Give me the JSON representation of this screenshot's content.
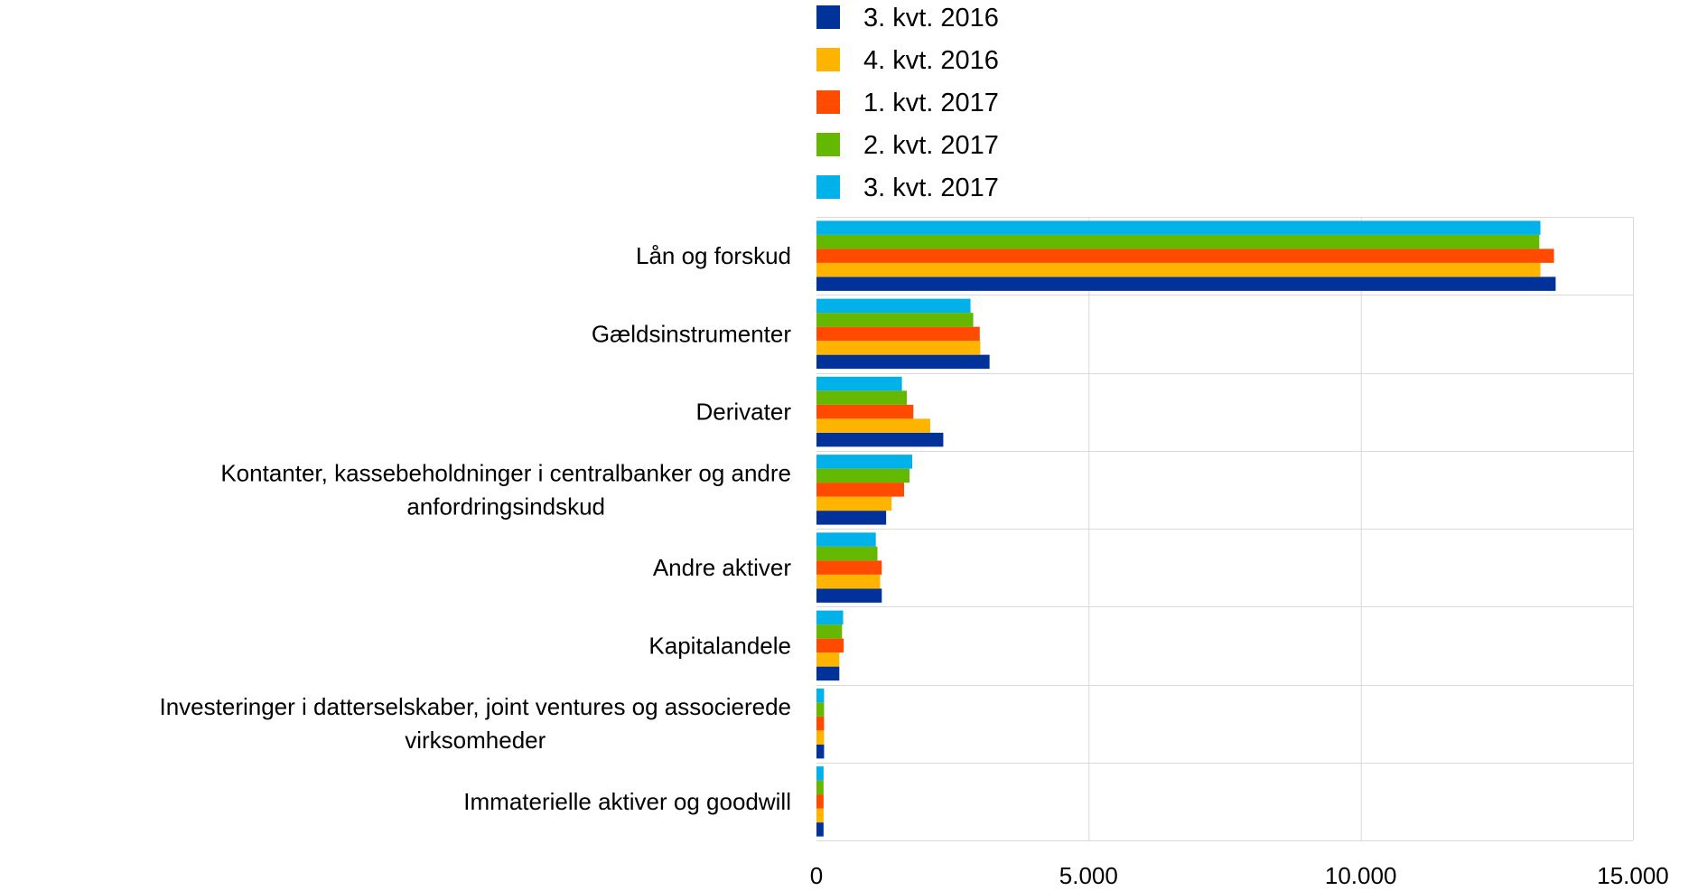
{
  "chart_data": {
    "type": "bar",
    "orientation": "horizontal",
    "title": "",
    "xlabel": "",
    "ylabel": "",
    "xlim": [
      0,
      15000
    ],
    "xticks": [
      0,
      5000,
      10000,
      15000
    ],
    "xtick_labels": [
      "0",
      "5.000",
      "10.000",
      "15.000"
    ],
    "grid": true,
    "legend_position": "top",
    "categories": [
      [
        "Lån og forskud"
      ],
      [
        "Gældsinstrumenter"
      ],
      [
        "Derivater"
      ],
      [
        "Kontanter, kassebeholdninger i centralbanker og andre",
        "anfordringsindskud"
      ],
      [
        "Andre aktiver"
      ],
      [
        "Kapitalandele"
      ],
      [
        "Investeringer i datterselskaber, joint ventures og associerede",
        "virksomheder"
      ],
      [
        "Immaterielle aktiver og goodwill"
      ]
    ],
    "series": [
      {
        "name": "3. kvt. 2016",
        "color": "#003299",
        "values": [
          13580,
          3180,
          2330,
          1280,
          1200,
          420,
          140,
          130
        ]
      },
      {
        "name": "4. kvt. 2016",
        "color": "#FFB400",
        "values": [
          13300,
          3010,
          2090,
          1380,
          1170,
          420,
          140,
          130
        ]
      },
      {
        "name": "1. kvt. 2017",
        "color": "#FF4B00",
        "values": [
          13550,
          3000,
          1780,
          1610,
          1200,
          500,
          140,
          130
        ]
      },
      {
        "name": "2. kvt. 2017",
        "color": "#65B800",
        "values": [
          13280,
          2880,
          1660,
          1710,
          1120,
          470,
          140,
          130
        ]
      },
      {
        "name": "3. kvt. 2017",
        "color": "#00B1EA",
        "values": [
          13300,
          2830,
          1570,
          1760,
          1090,
          490,
          140,
          130
        ]
      }
    ]
  }
}
